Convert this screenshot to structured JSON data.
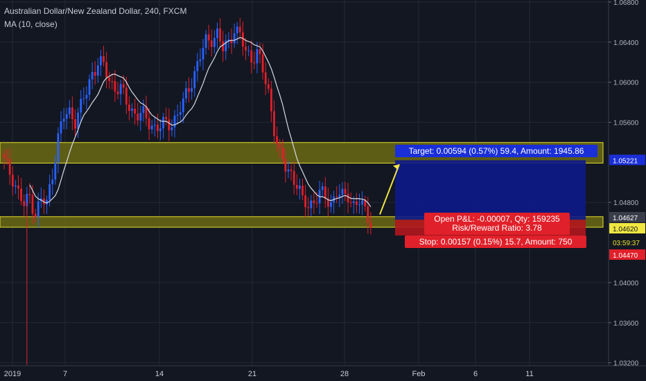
{
  "header": {
    "title": "Australian Dollar/New Zealand Dollar, 240, FXCM",
    "indicator": "MA (10, close)"
  },
  "colors": {
    "background": "#131722",
    "grid": "#242833",
    "up": "#2962ff",
    "down": "#e0202a",
    "ma": "#d8dce6",
    "zone_fill": "#6b6a14",
    "zone_line": "#e8e02a",
    "target_fill": "#0d1a8a",
    "stop_fill": "#b3161e",
    "arrow": "#f0e640"
  },
  "chart_data": {
    "type": "candlestick",
    "title": "Australian Dollar/New Zealand Dollar, 240, FXCM",
    "indicator": "MA (10, close)",
    "ylim": [
      1.0317,
      1.0682
    ],
    "y_ticks": [
      "1.06800",
      "1.06400",
      "1.06000",
      "1.05600",
      "1.04800",
      "1.04000",
      "1.03600",
      "1.03200"
    ],
    "x_ticks": [
      "2019",
      "7",
      "14",
      "21",
      "28",
      "Feb",
      "6",
      "11"
    ],
    "price_labels": [
      {
        "text": "1.05221",
        "value": 1.05221,
        "kind": "target"
      },
      {
        "text": "1.04627",
        "value": 1.04627,
        "kind": "open"
      },
      {
        "text": "1.04620",
        "value": 1.0462,
        "kind": "last"
      },
      {
        "text": "03:59:37",
        "value": 1.0448,
        "kind": "timer"
      },
      {
        "text": "1.04470",
        "value": 1.0447,
        "kind": "stop"
      }
    ],
    "zones": [
      {
        "from": 1.0522,
        "to": 1.0537
      },
      {
        "from": 1.0458,
        "to": 1.0463
      }
    ],
    "position": {
      "entry": 1.04627,
      "target": 1.05221,
      "stop": 1.0447,
      "target_label": "Target: 0.00594 (0.57%) 59.4, Amount: 1945.86",
      "pnl_label": "Open P&L: -0.00007, Qty: 159235",
      "rr_label": "Risk/Reward Ratio: 3.78",
      "stop_label": "Stop: 0.00157 (0.15%) 15.7, Amount: 750"
    },
    "price_path": [
      [
        0,
        1.052
      ],
      [
        3,
        1.0505
      ],
      [
        5,
        1.049
      ],
      [
        7,
        1.0476
      ],
      [
        9,
        1.0486
      ],
      [
        11,
        1.047
      ],
      [
        13,
        1.0482
      ],
      [
        15,
        1.0478
      ],
      [
        17,
        1.051
      ],
      [
        19,
        1.0545
      ],
      [
        21,
        1.0565
      ],
      [
        23,
        1.057
      ],
      [
        25,
        1.0563
      ],
      [
        27,
        1.0575
      ],
      [
        29,
        1.059
      ],
      [
        31,
        1.061
      ],
      [
        33,
        1.062
      ],
      [
        35,
        1.0615
      ],
      [
        37,
        1.0602
      ],
      [
        39,
        1.0596
      ],
      [
        41,
        1.0592
      ],
      [
        43,
        1.058
      ],
      [
        45,
        1.0572
      ],
      [
        47,
        1.0568
      ],
      [
        49,
        1.0566
      ],
      [
        51,
        1.056
      ],
      [
        53,
        1.0556
      ],
      [
        55,
        1.0555
      ],
      [
        57,
        1.0558
      ],
      [
        59,
        1.056
      ],
      [
        61,
        1.0568
      ],
      [
        63,
        1.0578
      ],
      [
        65,
        1.0595
      ],
      [
        67,
        1.061
      ],
      [
        69,
        1.0625
      ],
      [
        71,
        1.064
      ],
      [
        73,
        1.0645
      ],
      [
        75,
        1.0648
      ],
      [
        77,
        1.0632
      ],
      [
        79,
        1.064
      ],
      [
        81,
        1.0655
      ],
      [
        83,
        1.0645
      ],
      [
        85,
        1.063
      ],
      [
        87,
        1.0625
      ],
      [
        89,
        1.063
      ],
      [
        91,
        1.061
      ],
      [
        93,
        1.059
      ],
      [
        95,
        1.0555
      ],
      [
        97,
        1.0525
      ],
      [
        99,
        1.0515
      ],
      [
        101,
        1.051
      ],
      [
        103,
        1.0498
      ],
      [
        105,
        1.048
      ],
      [
        107,
        1.0478
      ],
      [
        109,
        1.0482
      ],
      [
        111,
        1.0488
      ],
      [
        113,
        1.0485
      ],
      [
        115,
        1.048
      ],
      [
        117,
        1.049
      ],
      [
        119,
        1.0484
      ],
      [
        121,
        1.0488
      ],
      [
        123,
        1.0478
      ],
      [
        125,
        1.048
      ],
      [
        127,
        1.047
      ],
      [
        129,
        1.0462
      ]
    ]
  }
}
